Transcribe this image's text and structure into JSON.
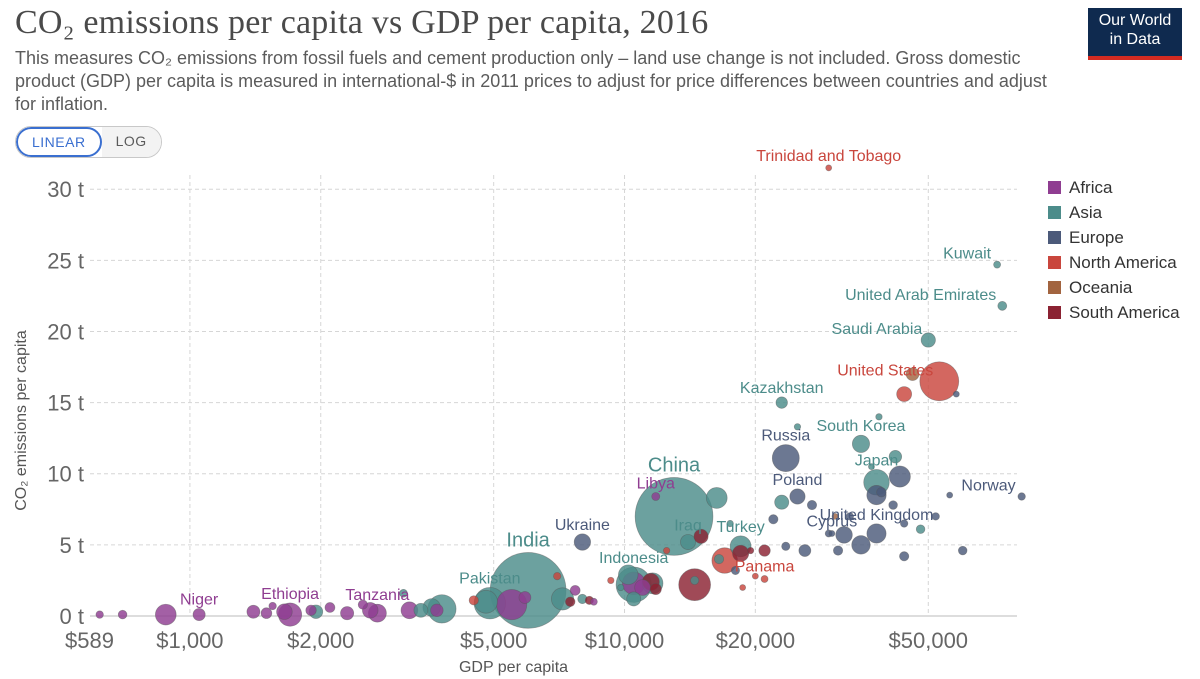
{
  "header": {
    "title": "CO₂ emissions per capita vs GDP per capita, 2016",
    "subtitle": "This measures CO₂ emissions from fossil fuels and cement production only – land use change is not included. Gross domestic product (GDP) per capita is measured in international-$ in 2011 prices to adjust for price differences between countries and adjust for inflation.",
    "logo_line1": "Our World",
    "logo_line2": "in Data"
  },
  "controls": {
    "linear_label": "LINEAR",
    "log_label": "LOG"
  },
  "legend": [
    {
      "name": "Africa",
      "color": "#8f3d91"
    },
    {
      "name": "Asia",
      "color": "#4c8c8a"
    },
    {
      "name": "Europe",
      "color": "#4c5a7a"
    },
    {
      "name": "North America",
      "color": "#c9463d"
    },
    {
      "name": "Oceania",
      "color": "#a2643f"
    },
    {
      "name": "South America",
      "color": "#8b2232"
    }
  ],
  "chart_data": {
    "type": "scatter",
    "xlabel": "GDP per capita",
    "ylabel": "CO₂ emissions per capita",
    "x_scale": "log",
    "xlim": [
      589,
      80000
    ],
    "ylim": [
      0,
      31
    ],
    "x_ticks": [
      {
        "v": 589,
        "label": "$589"
      },
      {
        "v": 1000,
        "label": "$1,000"
      },
      {
        "v": 2000,
        "label": "$2,000"
      },
      {
        "v": 5000,
        "label": "$5,000"
      },
      {
        "v": 10000,
        "label": "$10,000"
      },
      {
        "v": 20000,
        "label": "$20,000"
      },
      {
        "v": 50000,
        "label": "$50,000"
      }
    ],
    "y_ticks": [
      {
        "v": 0,
        "label": "0 t"
      },
      {
        "v": 5,
        "label": "5 t"
      },
      {
        "v": 10,
        "label": "10 t"
      },
      {
        "v": 15,
        "label": "15 t"
      },
      {
        "v": 20,
        "label": "20 t"
      },
      {
        "v": 25,
        "label": "25 t"
      },
      {
        "v": 30,
        "label": "30 t"
      }
    ],
    "grid": true,
    "legend_position": "right",
    "points": [
      {
        "label": "Trinidad and Tobago",
        "region": "North America",
        "x": 29500,
        "y": 31.5,
        "pop": 1.4
      },
      {
        "label": "Kuwait",
        "region": "Asia",
        "x": 72000,
        "y": 24.7,
        "pop": 4
      },
      {
        "label": "United Arab Emirates",
        "region": "Asia",
        "x": 74000,
        "y": 21.8,
        "pop": 9
      },
      {
        "label": "Saudi Arabia",
        "region": "Asia",
        "x": 50000,
        "y": 19.4,
        "pop": 32
      },
      {
        "label": "United States",
        "region": "North America",
        "x": 53000,
        "y": 16.5,
        "pop": 323
      },
      {
        "label": "Kazakhstan",
        "region": "Asia",
        "x": 23000,
        "y": 15,
        "pop": 18
      },
      {
        "label": "South Korea",
        "region": "Asia",
        "x": 35000,
        "y": 12.1,
        "pop": 51
      },
      {
        "label": "Russia",
        "region": "Europe",
        "x": 23500,
        "y": 11.1,
        "pop": 144
      },
      {
        "label": "Japan",
        "region": "Asia",
        "x": 38000,
        "y": 9.4,
        "pop": 127
      },
      {
        "label": "Norway",
        "region": "Europe",
        "x": 82000,
        "y": 8.4,
        "pop": 5
      },
      {
        "label": "Poland",
        "region": "Europe",
        "x": 25000,
        "y": 8.4,
        "pop": 38
      },
      {
        "label": "China",
        "region": "Asia",
        "x": 13000,
        "y": 7,
        "pop": 1400
      },
      {
        "label": "Libya",
        "region": "Africa",
        "x": 11800,
        "y": 8.4,
        "pop": 6.5
      },
      {
        "label": "Cyprus",
        "region": "Europe",
        "x": 30000,
        "y": 5.8,
        "pop": 1.2
      },
      {
        "label": "United Kingdom",
        "region": "Europe",
        "x": 38000,
        "y": 5.8,
        "pop": 66
      },
      {
        "label": "Ukraine",
        "region": "Europe",
        "x": 8000,
        "y": 5.2,
        "pop": 45
      },
      {
        "label": "Iraq",
        "region": "Asia",
        "x": 14000,
        "y": 5.2,
        "pop": 37
      },
      {
        "label": "Turkey",
        "region": "Asia",
        "x": 18500,
        "y": 4.9,
        "pop": 80
      },
      {
        "label": "India",
        "region": "Asia",
        "x": 6000,
        "y": 1.8,
        "pop": 1324
      },
      {
        "label": "Indonesia",
        "region": "Asia",
        "x": 10500,
        "y": 2.2,
        "pop": 261
      },
      {
        "label": "Panama",
        "region": "North America",
        "x": 21000,
        "y": 2.6,
        "pop": 4
      },
      {
        "label": "Pakistan",
        "region": "Asia",
        "x": 4900,
        "y": 0.9,
        "pop": 203
      },
      {
        "label": "Niger",
        "region": "Africa",
        "x": 1050,
        "y": 0.1,
        "pop": 21
      },
      {
        "label": "Ethiopia",
        "region": "Africa",
        "x": 1700,
        "y": 0.1,
        "pop": 103
      },
      {
        "label": "Tanzania",
        "region": "Africa",
        "x": 2700,
        "y": 0.2,
        "pop": 56
      },
      {
        "region": "Africa",
        "x": 620,
        "y": 0.1,
        "pop": 5
      },
      {
        "region": "Africa",
        "x": 700,
        "y": 0.1,
        "pop": 8
      },
      {
        "region": "Africa",
        "x": 880,
        "y": 0.1,
        "pop": 79
      },
      {
        "region": "Africa",
        "x": 1400,
        "y": 0.3,
        "pop": 25
      },
      {
        "region": "Africa",
        "x": 1500,
        "y": 0.2,
        "pop": 15
      },
      {
        "region": "Africa",
        "x": 1550,
        "y": 0.7,
        "pop": 5
      },
      {
        "region": "Africa",
        "x": 1650,
        "y": 0.3,
        "pop": 40
      },
      {
        "region": "Africa",
        "x": 1900,
        "y": 0.4,
        "pop": 14
      },
      {
        "region": "Asia",
        "x": 1950,
        "y": 0.3,
        "pop": 28
      },
      {
        "region": "Africa",
        "x": 2100,
        "y": 0.6,
        "pop": 12
      },
      {
        "region": "Africa",
        "x": 2300,
        "y": 0.2,
        "pop": 26
      },
      {
        "region": "Africa",
        "x": 2500,
        "y": 0.8,
        "pop": 10
      },
      {
        "region": "Africa",
        "x": 2600,
        "y": 0.4,
        "pop": 40
      },
      {
        "region": "Asia",
        "x": 3100,
        "y": 1.6,
        "pop": 6
      },
      {
        "region": "Africa",
        "x": 3200,
        "y": 0.4,
        "pop": 48
      },
      {
        "region": "Asia",
        "x": 3400,
        "y": 0.4,
        "pop": 30
      },
      {
        "region": "Asia",
        "x": 3600,
        "y": 0.6,
        "pop": 53
      },
      {
        "region": "Asia",
        "x": 3800,
        "y": 0.5,
        "pop": 161
      },
      {
        "region": "Africa",
        "x": 3700,
        "y": 0.4,
        "pop": 23
      },
      {
        "region": "North America",
        "x": 4500,
        "y": 1.1,
        "pop": 10
      },
      {
        "region": "Asia",
        "x": 4800,
        "y": 1,
        "pop": 100
      },
      {
        "region": "Africa",
        "x": 5500,
        "y": 0.8,
        "pop": 186
      },
      {
        "region": "Africa",
        "x": 5900,
        "y": 1.3,
        "pop": 20
      },
      {
        "region": "North America",
        "x": 7000,
        "y": 2.8,
        "pop": 5
      },
      {
        "region": "Asia",
        "x": 7200,
        "y": 1.2,
        "pop": 93
      },
      {
        "region": "South America",
        "x": 7500,
        "y": 1,
        "pop": 11
      },
      {
        "region": "Africa",
        "x": 7700,
        "y": 1.8,
        "pop": 12
      },
      {
        "region": "Asia",
        "x": 8000,
        "y": 1.2,
        "pop": 10
      },
      {
        "region": "South America",
        "x": 8300,
        "y": 1.1,
        "pop": 7
      },
      {
        "region": "Africa",
        "x": 8500,
        "y": 1,
        "pop": 4
      },
      {
        "region": "North America",
        "x": 9300,
        "y": 2.5,
        "pop": 3
      },
      {
        "region": "Asia",
        "x": 9800,
        "y": 2,
        "pop": 3
      },
      {
        "region": "Asia",
        "x": 10200,
        "y": 2.9,
        "pop": 69
      },
      {
        "region": "Africa",
        "x": 10500,
        "y": 2.3,
        "pop": 96
      },
      {
        "region": "Asia",
        "x": 10500,
        "y": 1.2,
        "pop": 31
      },
      {
        "region": "Africa",
        "x": 11000,
        "y": 2,
        "pop": 41
      },
      {
        "region": "South America",
        "x": 11500,
        "y": 2.4,
        "pop": 49
      },
      {
        "region": "South America",
        "x": 11800,
        "y": 1.9,
        "pop": 17
      },
      {
        "region": "Asia",
        "x": 11600,
        "y": 2.3,
        "pop": 80
      },
      {
        "region": "North America",
        "x": 12500,
        "y": 4.6,
        "pop": 3
      },
      {
        "region": "Asia",
        "x": 14500,
        "y": 2.5,
        "pop": 7
      },
      {
        "region": "South America",
        "x": 14500,
        "y": 2.2,
        "pop": 208
      },
      {
        "region": "South America",
        "x": 15000,
        "y": 5.6,
        "pop": 31
      },
      {
        "region": "Asia",
        "x": 16300,
        "y": 8.3,
        "pop": 80
      },
      {
        "region": "Asia",
        "x": 16500,
        "y": 4,
        "pop": 10
      },
      {
        "region": "North America",
        "x": 17000,
        "y": 3.9,
        "pop": 127
      },
      {
        "region": "Asia",
        "x": 17500,
        "y": 6.5,
        "pop": 3
      },
      {
        "region": "Europe",
        "x": 18000,
        "y": 3.2,
        "pop": 7
      },
      {
        "region": "South America",
        "x": 18500,
        "y": 4.4,
        "pop": 44
      },
      {
        "region": "North America",
        "x": 18700,
        "y": 2,
        "pop": 2
      },
      {
        "region": "South America",
        "x": 19500,
        "y": 4.6,
        "pop": 3
      },
      {
        "region": "North America",
        "x": 20000,
        "y": 2.8,
        "pop": 1.4
      },
      {
        "region": "South America",
        "x": 21000,
        "y": 4.6,
        "pop": 18
      },
      {
        "region": "Europe",
        "x": 22000,
        "y": 6.8,
        "pop": 10
      },
      {
        "region": "Asia",
        "x": 23000,
        "y": 8,
        "pop": 31
      },
      {
        "region": "Europe",
        "x": 23500,
        "y": 4.9,
        "pop": 7
      },
      {
        "region": "Asia",
        "x": 25000,
        "y": 13.3,
        "pop": 3
      },
      {
        "region": "Europe",
        "x": 26000,
        "y": 4.6,
        "pop": 20
      },
      {
        "region": "Europe",
        "x": 27000,
        "y": 7.8,
        "pop": 10
      },
      {
        "region": "Europe",
        "x": 29500,
        "y": 5.8,
        "pop": 4
      },
      {
        "region": "Oceania",
        "x": 30500,
        "y": 7,
        "pop": 0.9
      },
      {
        "region": "Europe",
        "x": 31000,
        "y": 4.6,
        "pop": 10
      },
      {
        "region": "Europe",
        "x": 32000,
        "y": 5.7,
        "pop": 46
      },
      {
        "region": "Europe",
        "x": 33000,
        "y": 7,
        "pop": 5
      },
      {
        "region": "Europe",
        "x": 35000,
        "y": 5,
        "pop": 60
      },
      {
        "region": "Asia",
        "x": 37000,
        "y": 10.5,
        "pop": 1
      },
      {
        "region": "Europe",
        "x": 38000,
        "y": 8.5,
        "pop": 67
      },
      {
        "region": "Asia",
        "x": 38500,
        "y": 14,
        "pop": 3
      },
      {
        "region": "Europe",
        "x": 39000,
        "y": 8.7,
        "pop": 11
      },
      {
        "region": "Europe",
        "x": 41500,
        "y": 7.8,
        "pop": 8
      },
      {
        "region": "Asia",
        "x": 42000,
        "y": 11.2,
        "pop": 23
      },
      {
        "region": "Europe",
        "x": 43000,
        "y": 9.8,
        "pop": 82
      },
      {
        "region": "Europe",
        "x": 44000,
        "y": 4.2,
        "pop": 10
      },
      {
        "region": "Europe",
        "x": 44000,
        "y": 6.5,
        "pop": 5
      },
      {
        "region": "North America",
        "x": 44000,
        "y": 15.6,
        "pop": 36
      },
      {
        "region": "Oceania",
        "x": 46000,
        "y": 17,
        "pop": 24
      },
      {
        "region": "Asia",
        "x": 48000,
        "y": 6.1,
        "pop": 8
      },
      {
        "region": "Europe",
        "x": 52000,
        "y": 7,
        "pop": 5
      },
      {
        "region": "Europe",
        "x": 58000,
        "y": 15.6,
        "pop": 0.6
      },
      {
        "region": "Europe",
        "x": 56000,
        "y": 8.5,
        "pop": 0.3
      },
      {
        "region": "Europe",
        "x": 60000,
        "y": 4.6,
        "pop": 8
      }
    ]
  }
}
